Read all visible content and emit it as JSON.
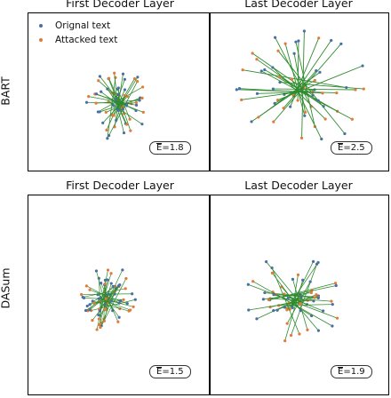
{
  "column_titles_top": [
    "First Decoder Layer",
    "Last Decoder Layer"
  ],
  "column_titles_bottom": [
    "First Decoder Layer",
    "Last Decoder Layer"
  ],
  "row_labels": [
    "BART",
    "DASum"
  ],
  "legend": [
    {
      "label": "Orignal text",
      "color": "#4a6fa5"
    },
    {
      "label": "Attacked text",
      "color": "#e07b39"
    }
  ],
  "colors": {
    "original": "#4a6fa5",
    "attacked": "#e07b39",
    "edge": "#2e8b2e"
  },
  "chart_data": {
    "type": "scatter",
    "panels": [
      {
        "row": "BART",
        "column": "First Decoder Layer",
        "E_label": "E",
        "E_value": "1.8"
      },
      {
        "row": "BART",
        "column": "Last Decoder Layer",
        "E_label": "E",
        "E_value": "2.5"
      },
      {
        "row": "DASum",
        "column": "First Decoder Layer",
        "E_label": "E",
        "E_value": "1.5"
      },
      {
        "row": "DASum",
        "column": "Last Decoder Layer",
        "E_label": "E",
        "E_value": "1.9"
      }
    ]
  }
}
